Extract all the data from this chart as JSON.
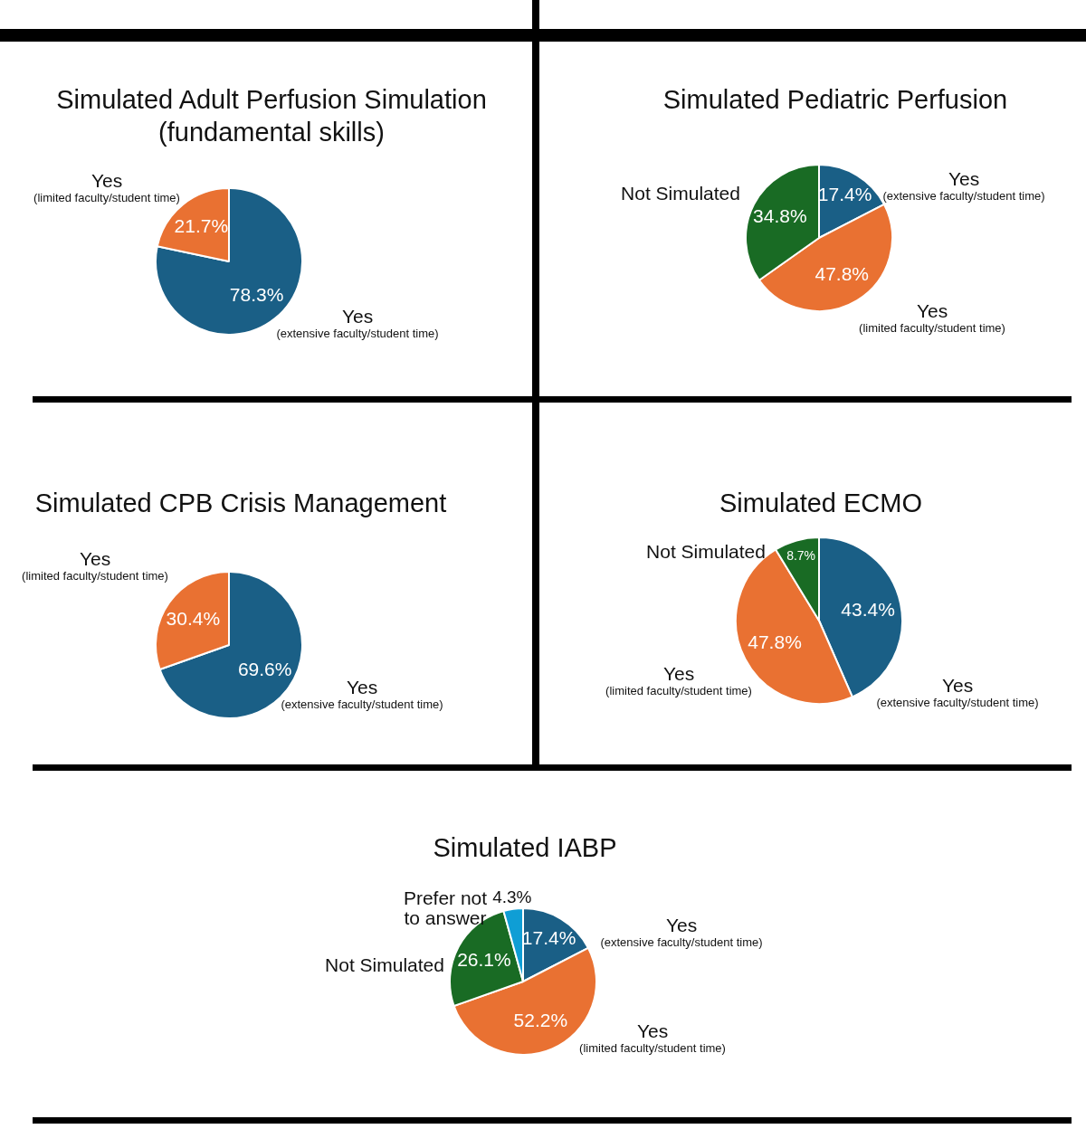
{
  "chart_data": [
    {
      "type": "pie",
      "title": "Simulated Adult Perfusion Simulation (fundamental skills)",
      "categories": [
        "Yes\n(extensive faculty/student time)",
        "Yes\n(limited faculty/student time)"
      ],
      "values": [
        78.3,
        21.7
      ],
      "colors": [
        "#1a5f86",
        "#e97132"
      ],
      "value_labels": [
        "78.3%",
        "21.7%"
      ],
      "legend": false
    },
    {
      "type": "pie",
      "title": "Simulated Pediatric Perfusion",
      "categories": [
        "Yes\n(extensive faculty/student time)",
        "Yes\n(limited faculty/student time)",
        "Not Simulated"
      ],
      "values": [
        17.4,
        47.8,
        34.8
      ],
      "colors": [
        "#1a5f86",
        "#e97132",
        "#196b24"
      ],
      "value_labels": [
        "17.4%",
        "47.8%",
        "34.8%"
      ],
      "legend": false
    },
    {
      "type": "pie",
      "title": "Simulated CPB Crisis Management",
      "categories": [
        "Yes\n(extensive faculty/student time)",
        "Yes\n(limited faculty/student time)"
      ],
      "values": [
        69.6,
        30.4
      ],
      "colors": [
        "#1a5f86",
        "#e97132"
      ],
      "value_labels": [
        "69.6%",
        "30.4%"
      ],
      "legend": false
    },
    {
      "type": "pie",
      "title": "Simulated ECMO",
      "categories": [
        "Yes\n(extensive faculty/student time)",
        "Yes\n(limited faculty/student time)",
        "Not Simulated"
      ],
      "values": [
        43.4,
        47.8,
        8.7
      ],
      "colors": [
        "#1a5f86",
        "#e97132",
        "#196b24"
      ],
      "value_labels": [
        "43.4%",
        "47.8%",
        "8.7%"
      ],
      "legend": false
    },
    {
      "type": "pie",
      "title": "Simulated IABP",
      "categories": [
        "Yes\n(extensive faculty/student time)",
        "Yes\n(limited faculty/student time)",
        "Not Simulated",
        "Prefer not to answer"
      ],
      "values": [
        17.4,
        52.2,
        26.1,
        4.3
      ],
      "colors": [
        "#1a5f86",
        "#e97132",
        "#196b24",
        "#0f9ed5"
      ],
      "value_labels": [
        "17.4%",
        "52.2%",
        "26.1%",
        "4.3%"
      ],
      "legend": false
    }
  ]
}
